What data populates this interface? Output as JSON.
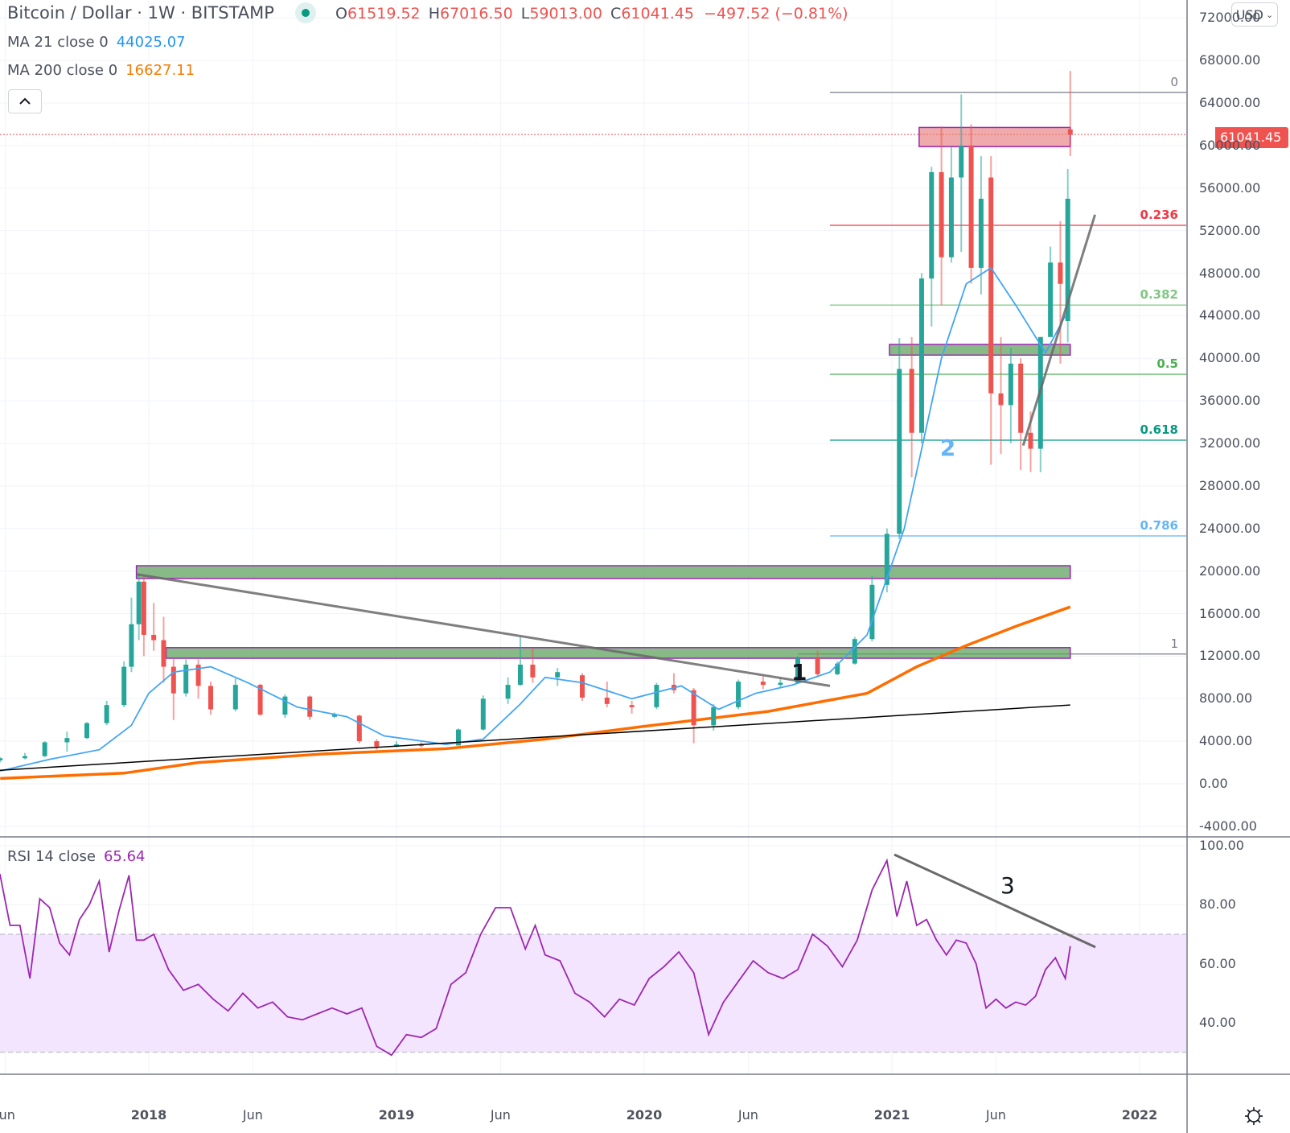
{
  "header": {
    "title": "Bitcoin / Dollar · 1W · BITSTAMP",
    "market_status": "open",
    "ohlc": {
      "open_label": "O",
      "open": "61519.52",
      "high_label": "H",
      "high": "67016.50",
      "low_label": "L",
      "low": "59013.00",
      "close_label": "C",
      "close": "61041.45",
      "change": "−497.52 (−0.81%)"
    }
  },
  "indicators": [
    {
      "label": "MA 21 close 0",
      "value": "44025.07",
      "color": "#2196f3"
    },
    {
      "label": "MA 200 close 0",
      "value": "16627.11",
      "color": "#f57c00"
    }
  ],
  "rsi": {
    "label": "RSI 14 close",
    "value": "65.64",
    "color": "#9c27b0"
  },
  "currency_button": {
    "label": "USD",
    "icon": "chevron-down-icon"
  },
  "last_price_tag": "61041.45",
  "colors": {
    "up": "#26a69a",
    "down": "#ef5350",
    "ma21": "#42a5f5",
    "ma200": "#ff6d00",
    "rsi": "#9c27b0",
    "rsi_band": "#f3e5fd",
    "green_zone": "#5fa35f",
    "red_zone": "#e57373",
    "zone_border": "#9c27b0"
  },
  "chart_data": [
    {
      "type": "candlestick",
      "title": "Bitcoin / Dollar · 1W · BITSTAMP",
      "xlabel": "",
      "ylabel": "USD",
      "x_ticks": [
        "Jun",
        "2018",
        "Jun",
        "2019",
        "Jun",
        "2020",
        "Jun",
        "2021",
        "Jun",
        "2022"
      ],
      "y_ticks": [
        "72000.00",
        "68000.00",
        "64000.00",
        "60000.00",
        "56000.00",
        "52000.00",
        "48000.00",
        "44000.00",
        "40000.00",
        "36000.00",
        "32000.00",
        "28000.00",
        "24000.00",
        "20000.00",
        "16000.00",
        "12000.00",
        "8000.00",
        "4000.00",
        "0.00",
        "-4000.00"
      ],
      "ylim": [
        -4000,
        72000
      ],
      "grid": true,
      "last": {
        "open": 61519.52,
        "high": 67016.5,
        "low": 59013.0,
        "close": 61041.45,
        "change": -497.52,
        "change_pct": -0.81
      },
      "series": [
        {
          "name": "MA 21 close 0",
          "last_value": 44025.07,
          "points": [
            [
              2017.4,
              1200
            ],
            [
              2017.6,
              2300
            ],
            [
              2017.8,
              3200
            ],
            [
              2017.93,
              5500
            ],
            [
              2018.0,
              8500
            ],
            [
              2018.1,
              10500
            ],
            [
              2018.25,
              11000
            ],
            [
              2018.4,
              9500
            ],
            [
              2018.6,
              7200
            ],
            [
              2018.8,
              6300
            ],
            [
              2018.95,
              4500
            ],
            [
              2019.2,
              3700
            ],
            [
              2019.35,
              4200
            ],
            [
              2019.5,
              7500
            ],
            [
              2019.6,
              10000
            ],
            [
              2019.75,
              9500
            ],
            [
              2019.95,
              8000
            ],
            [
              2020.15,
              9200
            ],
            [
              2020.3,
              7000
            ],
            [
              2020.45,
              8500
            ],
            [
              2020.6,
              9300
            ],
            [
              2020.75,
              10500
            ],
            [
              2020.9,
              14000
            ],
            [
              2021.05,
              24000
            ],
            [
              2021.2,
              40000
            ],
            [
              2021.3,
              47000
            ],
            [
              2021.4,
              48500
            ],
            [
              2021.5,
              45000
            ],
            [
              2021.62,
              40500
            ],
            [
              2021.7,
              44000
            ]
          ]
        },
        {
          "name": "MA 200 close 0",
          "last_value": 16627.11,
          "points": [
            [
              2017.4,
              500
            ],
            [
              2017.9,
              1000
            ],
            [
              2018.2,
              2000
            ],
            [
              2018.7,
              2800
            ],
            [
              2019.2,
              3300
            ],
            [
              2019.6,
              4200
            ],
            [
              2020.0,
              5400
            ],
            [
              2020.5,
              6800
            ],
            [
              2020.9,
              8500
            ],
            [
              2021.1,
              11000
            ],
            [
              2021.3,
              13000
            ],
            [
              2021.5,
              14800
            ],
            [
              2021.72,
              16627
            ]
          ]
        }
      ],
      "zones": [
        {
          "name": "resistance-2017-ath",
          "type": "green",
          "x": [
            2017.95,
            2021.72
          ],
          "y": [
            19300,
            20500
          ]
        },
        {
          "name": "resistance-12k",
          "type": "green",
          "x": [
            2018.07,
            2021.72
          ],
          "y": [
            11800,
            12800
          ]
        },
        {
          "name": "support-40k",
          "type": "green",
          "x": [
            2020.99,
            2021.72
          ],
          "y": [
            40300,
            41300
          ]
        },
        {
          "name": "resistance-60k",
          "type": "red",
          "x": [
            2021.11,
            2021.72
          ],
          "y": [
            59900,
            61700
          ]
        }
      ],
      "trendlines": [
        {
          "name": "descending-trendline",
          "from": [
            2017.95,
            19700
          ],
          "to": [
            2020.75,
            9200
          ],
          "color": "#696969"
        },
        {
          "name": "long-term-support",
          "from": [
            2017.35,
            1200
          ],
          "to": [
            2021.72,
            7400
          ],
          "color": "#000000"
        },
        {
          "name": "ascending-trendline",
          "from": [
            2021.53,
            31800
          ],
          "to": [
            2021.82,
            53500
          ],
          "color": "#696969"
        }
      ],
      "fibonacci": {
        "x": [
          2020.75,
          2021.92
        ],
        "levels": [
          {
            "ratio": "0",
            "price": 65000,
            "color": "#787b86"
          },
          {
            "ratio": "0.236",
            "price": 52500,
            "color": "#f23645"
          },
          {
            "ratio": "0.382",
            "price": 45000,
            "color": "#81c784"
          },
          {
            "ratio": "0.5",
            "price": 38500,
            "color": "#4caf50"
          },
          {
            "ratio": "0.618",
            "price": 32300,
            "color": "#089981"
          },
          {
            "ratio": "0.786",
            "price": 23300,
            "color": "#64b5f6"
          },
          {
            "ratio": "1",
            "price": 12200,
            "color": "#787b86"
          }
        ]
      },
      "annotations": [
        {
          "text": "1",
          "x": 2020.62,
          "y": 10400,
          "color": "#131722"
        },
        {
          "text": "2",
          "x": 2021.22,
          "y": 31500,
          "color": "#64b5f6"
        }
      ],
      "candles_weekly_approx": [
        [
          2017.4,
          2200,
          2500,
          2000,
          2400
        ],
        [
          2017.5,
          2400,
          2900,
          2300,
          2600
        ],
        [
          2017.58,
          2600,
          4000,
          2500,
          3900
        ],
        [
          2017.67,
          3900,
          4900,
          3000,
          4300
        ],
        [
          2017.75,
          4300,
          5800,
          4200,
          5700
        ],
        [
          2017.83,
          5700,
          7800,
          5500,
          7400
        ],
        [
          2017.9,
          7400,
          11500,
          7200,
          11000
        ],
        [
          2017.93,
          11000,
          17500,
          10500,
          15000
        ],
        [
          2017.96,
          15000,
          19700,
          13500,
          19000
        ],
        [
          2017.98,
          19000,
          19500,
          12000,
          14000
        ],
        [
          2018.02,
          14000,
          17000,
          12500,
          13500
        ],
        [
          2018.06,
          13500,
          15700,
          9500,
          11000
        ],
        [
          2018.1,
          11000,
          11800,
          6000,
          8500
        ],
        [
          2018.15,
          8500,
          11700,
          8200,
          11200
        ],
        [
          2018.2,
          11200,
          11700,
          8000,
          9200
        ],
        [
          2018.25,
          9200,
          9600,
          6500,
          7000
        ],
        [
          2018.35,
          7000,
          9900,
          6800,
          9300
        ],
        [
          2018.45,
          9300,
          9400,
          6400,
          6500
        ],
        [
          2018.55,
          6500,
          8400,
          6200,
          8200
        ],
        [
          2018.65,
          8200,
          8300,
          6000,
          6300
        ],
        [
          2018.75,
          6300,
          6700,
          6200,
          6500
        ],
        [
          2018.85,
          6400,
          6500,
          3800,
          4000
        ],
        [
          2018.92,
          4000,
          4200,
          3200,
          3500
        ],
        [
          2019.0,
          3500,
          4000,
          3400,
          3700
        ],
        [
          2019.1,
          3700,
          3900,
          3400,
          3600
        ],
        [
          2019.25,
          3600,
          5200,
          3600,
          5100
        ],
        [
          2019.35,
          5100,
          8300,
          5000,
          8000
        ],
        [
          2019.45,
          8000,
          10000,
          7500,
          9300
        ],
        [
          2019.5,
          9300,
          13800,
          9200,
          11200
        ],
        [
          2019.55,
          11200,
          12800,
          9500,
          10000
        ],
        [
          2019.65,
          10000,
          10900,
          9200,
          10500
        ],
        [
          2019.75,
          10200,
          10400,
          7800,
          8100
        ],
        [
          2019.85,
          8100,
          9600,
          7200,
          7500
        ],
        [
          2019.95,
          7400,
          7800,
          6600,
          7200
        ],
        [
          2020.05,
          7200,
          9500,
          7000,
          9300
        ],
        [
          2020.12,
          9300,
          10400,
          8500,
          8800
        ],
        [
          2020.2,
          8800,
          9000,
          3800,
          5500
        ],
        [
          2020.28,
          5500,
          7500,
          5000,
          7200
        ],
        [
          2020.38,
          7200,
          9800,
          7000,
          9600
        ],
        [
          2020.48,
          9600,
          10100,
          8900,
          9300
        ],
        [
          2020.55,
          9300,
          10000,
          9000,
          9500
        ],
        [
          2020.62,
          9500,
          12000,
          9400,
          11800
        ],
        [
          2020.7,
          11800,
          12500,
          10000,
          10300
        ],
        [
          2020.78,
          10300,
          11500,
          10200,
          11300
        ],
        [
          2020.85,
          11300,
          13800,
          11200,
          13600
        ],
        [
          2020.92,
          13600,
          19500,
          13400,
          18700
        ],
        [
          2020.98,
          18700,
          24000,
          18000,
          23500
        ],
        [
          2021.03,
          23500,
          41900,
          23000,
          39000
        ],
        [
          2021.08,
          39000,
          42000,
          28800,
          33000
        ],
        [
          2021.12,
          33000,
          48000,
          32000,
          47500
        ],
        [
          2021.16,
          47500,
          58000,
          43000,
          57500
        ],
        [
          2021.2,
          57500,
          61800,
          45000,
          49500
        ],
        [
          2021.24,
          49500,
          60000,
          49000,
          57000
        ],
        [
          2021.28,
          57000,
          64800,
          50000,
          60000
        ],
        [
          2021.32,
          60000,
          62000,
          47000,
          48500
        ],
        [
          2021.36,
          48500,
          59000,
          46000,
          55000
        ],
        [
          2021.4,
          57000,
          59000,
          30000,
          36700
        ],
        [
          2021.44,
          36700,
          42000,
          31000,
          35600
        ],
        [
          2021.48,
          35600,
          41000,
          32000,
          39500
        ],
        [
          2021.52,
          39500,
          40000,
          29500,
          33000
        ],
        [
          2021.56,
          33000,
          35000,
          29300,
          31500
        ],
        [
          2021.6,
          31500,
          42000,
          29300,
          42000
        ],
        [
          2021.64,
          42000,
          50500,
          43000,
          49000
        ],
        [
          2021.68,
          49000,
          52900,
          39500,
          47000
        ],
        [
          2021.71,
          43500,
          57800,
          41500,
          55000
        ],
        [
          2021.72,
          61519,
          67016,
          59013,
          61041
        ]
      ]
    },
    {
      "type": "line",
      "title": "RSI 14 close",
      "last_value": 65.64,
      "y_ticks": [
        "100.00",
        "80.00",
        "60.00",
        "40.00"
      ],
      "ylim": [
        25,
        100
      ],
      "band": {
        "upper": 70,
        "lower": 30
      },
      "x": [
        2017.35,
        2017.4,
        2017.44,
        2017.48,
        2017.52,
        2017.56,
        2017.6,
        2017.64,
        2017.68,
        2017.72,
        2017.76,
        2017.8,
        2017.84,
        2017.88,
        2017.92,
        2017.95,
        2017.98,
        2018.02,
        2018.08,
        2018.14,
        2018.2,
        2018.26,
        2018.32,
        2018.38,
        2018.44,
        2018.5,
        2018.56,
        2018.62,
        2018.68,
        2018.74,
        2018.8,
        2018.86,
        2018.92,
        2018.98,
        2019.04,
        2019.1,
        2019.16,
        2019.22,
        2019.28,
        2019.34,
        2019.4,
        2019.46,
        2019.52,
        2019.56,
        2019.6,
        2019.66,
        2019.72,
        2019.78,
        2019.84,
        2019.9,
        2019.96,
        2020.02,
        2020.08,
        2020.14,
        2020.2,
        2020.26,
        2020.32,
        2020.38,
        2020.44,
        2020.5,
        2020.56,
        2020.62,
        2020.68,
        2020.74,
        2020.8,
        2020.86,
        2020.92,
        2020.98,
        2021.02,
        2021.06,
        2021.1,
        2021.14,
        2021.18,
        2021.22,
        2021.26,
        2021.3,
        2021.34,
        2021.38,
        2021.42,
        2021.46,
        2021.5,
        2021.54,
        2021.58,
        2021.62,
        2021.66,
        2021.7,
        2021.72
      ],
      "values": [
        84,
        90,
        73,
        73,
        55,
        82,
        79,
        67,
        63,
        75,
        80,
        88,
        64,
        78,
        90,
        68,
        68,
        70,
        58,
        51,
        53,
        48,
        44,
        50,
        45,
        47,
        42,
        41,
        43,
        45,
        43,
        45,
        32,
        29,
        36,
        35,
        38,
        53,
        57,
        70,
        79,
        79,
        65,
        73,
        63,
        61,
        50,
        47,
        42,
        48,
        46,
        55,
        59,
        64,
        57,
        36,
        47,
        54,
        61,
        57,
        55,
        58,
        70,
        66,
        59,
        68,
        85,
        95,
        76,
        88,
        73,
        75,
        68,
        63,
        68,
        67,
        60,
        45,
        48,
        45,
        47,
        46,
        49,
        58,
        62,
        55,
        66
      ]
    }
  ]
}
